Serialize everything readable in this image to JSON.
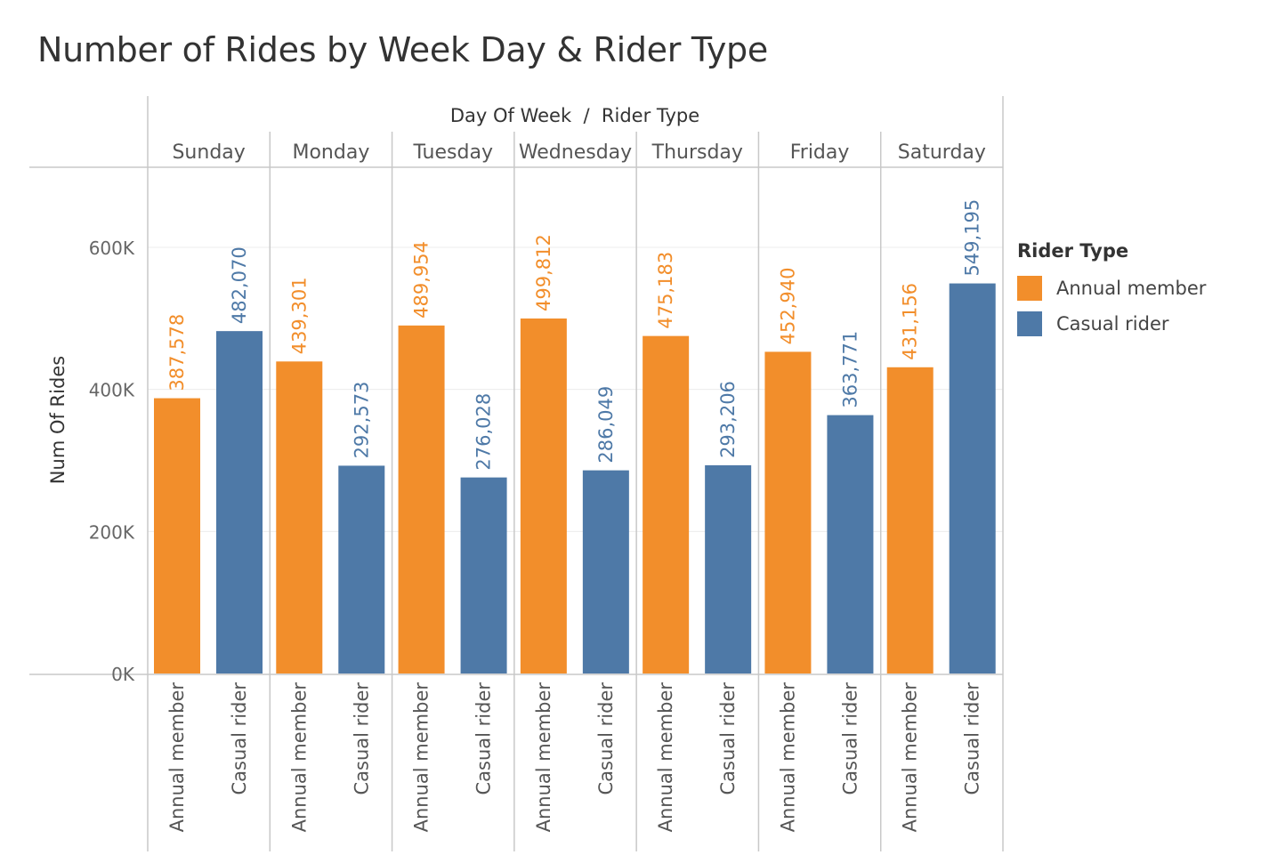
{
  "chart_data": {
    "type": "bar",
    "title": "Number of Rides by Week Day & Rider Type",
    "column_header": "Day Of Week  /  Rider Type",
    "ylabel": "Num Of Rides",
    "ylim": [
      0,
      700000
    ],
    "y_ticks": [
      0,
      200000,
      400000,
      600000
    ],
    "y_tick_labels": [
      "0K",
      "200K",
      "400K",
      "600K"
    ],
    "grid": true,
    "categories": [
      "Sunday",
      "Monday",
      "Tuesday",
      "Wednesday",
      "Thursday",
      "Friday",
      "Saturday"
    ],
    "series": [
      {
        "name": "Annual member",
        "color": "#F28E2B",
        "values": [
          387578,
          439301,
          489954,
          499812,
          475183,
          452940,
          431156
        ],
        "value_labels": [
          "387,578",
          "439,301",
          "489,954",
          "499,812",
          "475,183",
          "452,940",
          "431,156"
        ]
      },
      {
        "name": "Casual rider",
        "color": "#4E79A7",
        "values": [
          482070,
          292573,
          276028,
          286049,
          293206,
          363771,
          549195
        ],
        "value_labels": [
          "482,070",
          "292,573",
          "276,028",
          "286,049",
          "293,206",
          "363,771",
          "549,195"
        ]
      }
    ],
    "legend": {
      "title": "Rider Type",
      "position": "right"
    }
  }
}
